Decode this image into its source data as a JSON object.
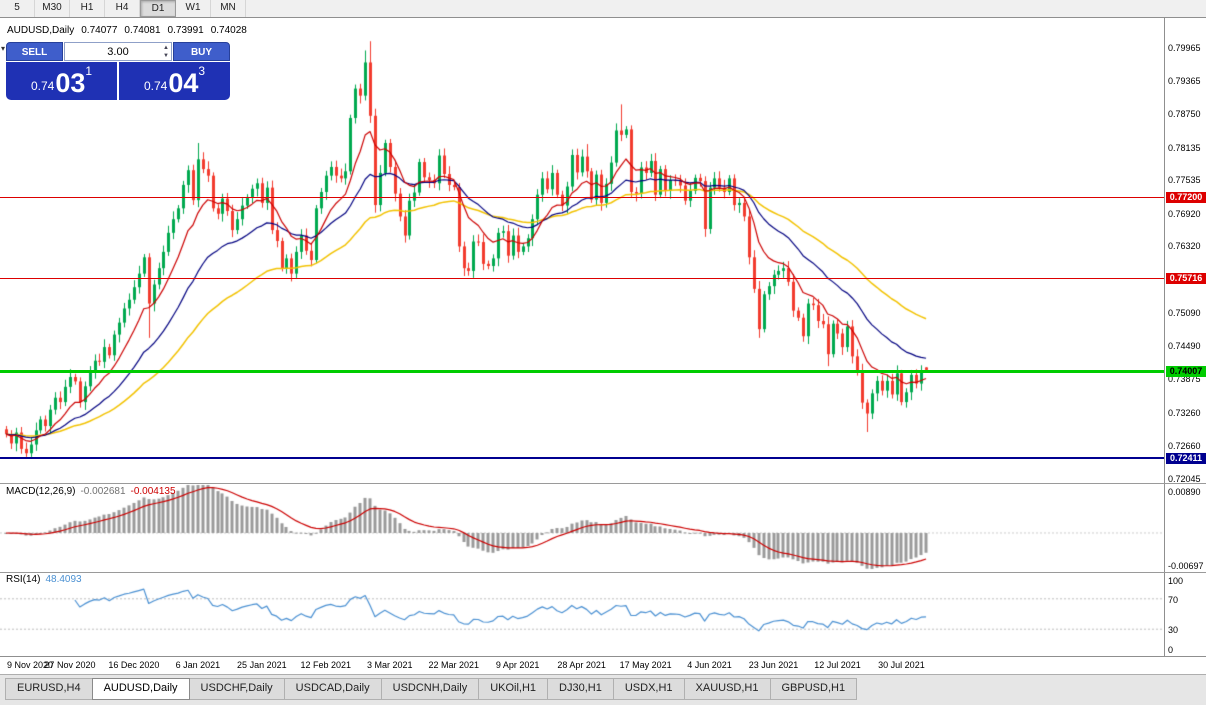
{
  "toolbar": {
    "timeframes": [
      "5",
      "M30",
      "H1",
      "H4",
      "D1",
      "W1",
      "MN"
    ],
    "active": "D1"
  },
  "chart_header": {
    "symbol": "AUDUSD,Daily",
    "open": "0.74077",
    "high": "0.74081",
    "low": "0.73991",
    "close": "0.74028"
  },
  "trade_panel": {
    "sell_label": "SELL",
    "buy_label": "BUY",
    "lot": "3.00",
    "sell_price": {
      "prefix": "0.74",
      "big": "03",
      "sup": "1"
    },
    "buy_price": {
      "prefix": "0.74",
      "big": "04",
      "sup": "3"
    }
  },
  "price_axis": {
    "ticks": [
      "0.79965",
      "0.79365",
      "0.78750",
      "0.78135",
      "0.77535",
      "0.76920",
      "0.76320",
      "0.75705",
      "0.75090",
      "0.74490",
      "0.73875",
      "0.73260",
      "0.72660",
      "0.72045"
    ]
  },
  "hlines": [
    {
      "price": 0.772,
      "label": "0.77200",
      "color": "#dd0000",
      "text_color": "#ffffff",
      "width": 1
    },
    {
      "price": 0.75716,
      "label": "0.75716",
      "color": "#dd0000",
      "text_color": "#ffffff",
      "width": 1
    },
    {
      "price": 0.74007,
      "label": "0.74007",
      "color": "#00cc00",
      "text_color": "#000000",
      "width": 3
    },
    {
      "price": 0.72411,
      "label": "0.72411",
      "color": "#000090",
      "text_color": "#ffffff",
      "width": 2
    }
  ],
  "indicators": {
    "macd": {
      "label": "MACD(12,26,9)",
      "value_main": "-0.002681",
      "value_signal": "-0.004135",
      "axis_labels": [
        "0.00890",
        "-0.00697"
      ],
      "fast": 12,
      "slow": 26,
      "signal": 9
    },
    "rsi": {
      "label": "RSI(14)",
      "value": "48.4093",
      "period": 14,
      "axis_labels": [
        "100",
        "70",
        "30",
        "0"
      ],
      "levels": [
        70,
        30
      ]
    }
  },
  "x_axis": {
    "labels": [
      "9 Nov 2020",
      "27 Nov 2020",
      "16 Dec 2020",
      "6 Jan 2021",
      "25 Jan 2021",
      "12 Feb 2021",
      "3 Mar 2021",
      "22 Mar 2021",
      "9 Apr 2021",
      "28 Apr 2021",
      "17 May 2021",
      "4 Jun 2021",
      "23 Jun 2021",
      "12 Jul 2021",
      "30 Jul 2021"
    ]
  },
  "tabs": {
    "items": [
      "EURUSD,H4",
      "AUDUSD,Daily",
      "USDCHF,Daily",
      "USDCAD,Daily",
      "USDCNH,Daily",
      "UKOil,H1",
      "DJ30,H1",
      "USDX,H1",
      "XAUUSD,H1",
      "GBPUSD,H1"
    ],
    "active_index": 1
  },
  "chart_data": {
    "type": "candlestick",
    "symbol": "AUDUSD",
    "timeframe": "Daily",
    "y_range": [
      0.7199,
      0.8046
    ],
    "macd_range": [
      -0.00697,
      0.0089
    ],
    "label_indices": [
      0,
      13,
      26,
      39,
      52,
      65,
      78,
      91,
      104,
      117,
      130,
      143,
      156,
      169,
      182
    ],
    "closes": [
      0.7285,
      0.7268,
      0.7288,
      0.7258,
      0.725,
      0.7266,
      0.7292,
      0.7312,
      0.73,
      0.733,
      0.7352,
      0.7344,
      0.7372,
      0.739,
      0.7382,
      0.7344,
      0.7373,
      0.74,
      0.742,
      0.7418,
      0.7445,
      0.743,
      0.7468,
      0.749,
      0.7516,
      0.7532,
      0.7555,
      0.758,
      0.761,
      0.7525,
      0.756,
      0.759,
      0.762,
      0.7655,
      0.768,
      0.77,
      0.7743,
      0.777,
      0.7715,
      0.779,
      0.7772,
      0.776,
      0.77,
      0.769,
      0.7718,
      0.7695,
      0.766,
      0.768,
      0.7705,
      0.772,
      0.7736,
      0.7746,
      0.771,
      0.7738,
      0.766,
      0.764,
      0.759,
      0.7608,
      0.758,
      0.762,
      0.765,
      0.7622,
      0.7605,
      0.77,
      0.773,
      0.776,
      0.7776,
      0.776,
      0.7755,
      0.7768,
      0.7866,
      0.792,
      0.7907,
      0.7968,
      0.787,
      0.7706,
      0.7765,
      0.782,
      0.7776,
      0.7727,
      0.7685,
      0.765,
      0.7714,
      0.7729,
      0.7785,
      0.7757,
      0.7752,
      0.7746,
      0.7797,
      0.7763,
      0.7743,
      0.7739,
      0.763,
      0.759,
      0.7585,
      0.7639,
      0.7638,
      0.7598,
      0.7594,
      0.7608,
      0.7655,
      0.7658,
      0.7613,
      0.765,
      0.762,
      0.763,
      0.7645,
      0.768,
      0.7725,
      0.7755,
      0.7735,
      0.7765,
      0.7725,
      0.7705,
      0.774,
      0.7798,
      0.7766,
      0.7795,
      0.7768,
      0.7716,
      0.7762,
      0.771,
      0.7745,
      0.7784,
      0.7843,
      0.7835,
      0.7845,
      0.773,
      0.7727,
      0.7775,
      0.7765,
      0.7787,
      0.7725,
      0.7772,
      0.7732,
      0.7752,
      0.775,
      0.7742,
      0.7714,
      0.7732,
      0.7756,
      0.775,
      0.7662,
      0.7738,
      0.7755,
      0.7738,
      0.773,
      0.7755,
      0.7706,
      0.771,
      0.7685,
      0.761,
      0.7552,
      0.7478,
      0.7542,
      0.7557,
      0.7578,
      0.7585,
      0.759,
      0.7565,
      0.7512,
      0.7499,
      0.7465,
      0.7525,
      0.7522,
      0.7493,
      0.7487,
      0.7432,
      0.7488,
      0.747,
      0.7445,
      0.7483,
      0.7428,
      0.74,
      0.7343,
      0.7323,
      0.736,
      0.7383,
      0.7365,
      0.7383,
      0.7358,
      0.7397,
      0.7344,
      0.7362,
      0.7394,
      0.7378,
      0.74,
      0.7403
    ],
    "wick_overrides": {
      "4": {
        "low": 0.7243
      },
      "29": {
        "low": 0.7462
      },
      "39": {
        "high": 0.782
      },
      "73": {
        "high": 0.799
      },
      "74": {
        "high": 0.8007
      },
      "75": {
        "low": 0.7692
      },
      "118": {
        "high": 0.7818
      },
      "125": {
        "high": 0.7891
      },
      "153": {
        "low": 0.7462
      },
      "167": {
        "low": 0.741
      },
      "175": {
        "low": 0.7289
      },
      "187": {
        "open": 0.74077,
        "high": 0.74081,
        "low": 0.73991,
        "close": 0.74028
      }
    },
    "moving_averages": [
      {
        "period": 50,
        "color": "#f2c200"
      },
      {
        "period": 25,
        "color": "#000080"
      },
      {
        "period": 10,
        "color": "#cc0000"
      }
    ],
    "colors": {
      "up": "#00a94f",
      "down": "#f23b2e",
      "macd_hist": "#9a9a9a",
      "macd_signal": "#cc0000",
      "rsi_line": "#4a90d2"
    }
  }
}
